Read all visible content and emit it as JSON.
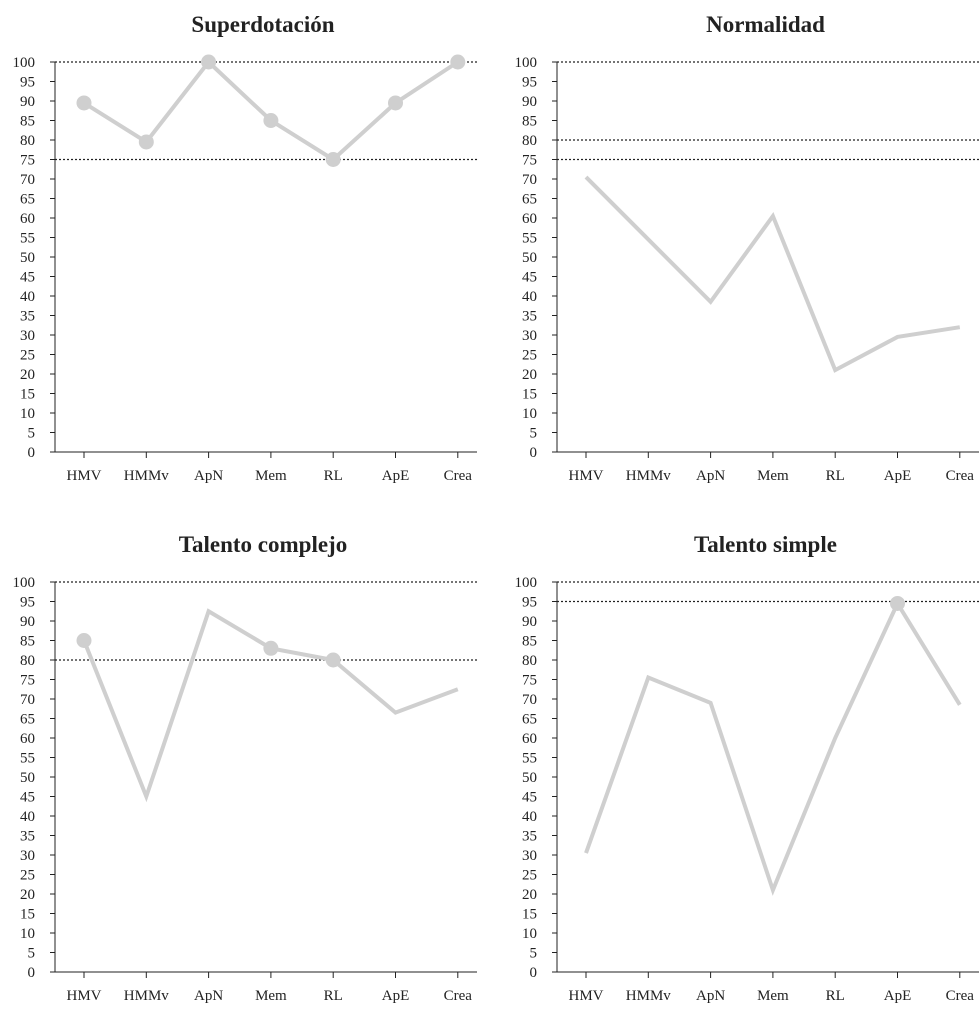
{
  "chart_data": [
    {
      "type": "line",
      "title": "Superdotación",
      "categories": [
        "HMV",
        "HMMv",
        "ApN",
        "Mem",
        "RL",
        "ApE",
        "Crea"
      ],
      "values": [
        89.5,
        79.5,
        100,
        85,
        75,
        89.5,
        100
      ],
      "markers": [
        true,
        true,
        true,
        true,
        true,
        true,
        true
      ],
      "reference_lines": [
        100,
        75
      ],
      "ylim": [
        0,
        100
      ],
      "yticks": [
        0,
        5,
        10,
        15,
        20,
        25,
        30,
        35,
        40,
        45,
        50,
        55,
        60,
        65,
        70,
        75,
        80,
        85,
        90,
        95,
        100
      ]
    },
    {
      "type": "line",
      "title": "Normalidad",
      "categories": [
        "HMV",
        "HMMv",
        "ApN",
        "Mem",
        "RL",
        "ApE",
        "Crea"
      ],
      "values": [
        70.5,
        54.5,
        38.5,
        60.5,
        21,
        29.5,
        32
      ],
      "markers": [
        false,
        false,
        false,
        false,
        false,
        false,
        false
      ],
      "reference_lines": [
        100,
        80,
        75
      ],
      "ylim": [
        0,
        100
      ],
      "yticks": [
        0,
        5,
        10,
        15,
        20,
        25,
        30,
        35,
        40,
        45,
        50,
        55,
        60,
        65,
        70,
        75,
        80,
        85,
        90,
        95,
        100
      ]
    },
    {
      "type": "line",
      "title": "Talento complejo",
      "categories": [
        "HMV",
        "HMMv",
        "ApN",
        "Mem",
        "RL",
        "ApE",
        "Crea"
      ],
      "values": [
        85,
        45,
        92.5,
        83,
        80,
        66.5,
        72.5
      ],
      "markers": [
        true,
        false,
        false,
        true,
        true,
        false,
        false
      ],
      "reference_lines": [
        100,
        80
      ],
      "ylim": [
        0,
        100
      ],
      "yticks": [
        0,
        5,
        10,
        15,
        20,
        25,
        30,
        35,
        40,
        45,
        50,
        55,
        60,
        65,
        70,
        75,
        80,
        85,
        90,
        95,
        100
      ]
    },
    {
      "type": "line",
      "title": "Talento simple",
      "categories": [
        "HMV",
        "HMMv",
        "ApN",
        "Mem",
        "RL",
        "ApE",
        "Crea"
      ],
      "values": [
        30.5,
        75.5,
        69,
        21,
        60,
        94.5,
        68.5
      ],
      "markers": [
        false,
        false,
        false,
        false,
        false,
        true,
        false
      ],
      "reference_lines": [
        100,
        95
      ],
      "ylim": [
        0,
        100
      ],
      "yticks": [
        0,
        5,
        10,
        15,
        20,
        25,
        30,
        35,
        40,
        45,
        50,
        55,
        60,
        65,
        70,
        75,
        80,
        85,
        90,
        95,
        100
      ]
    }
  ],
  "colors": {
    "series": "#cfcfcf",
    "axis": "#222222",
    "reference_line": "#222222"
  }
}
